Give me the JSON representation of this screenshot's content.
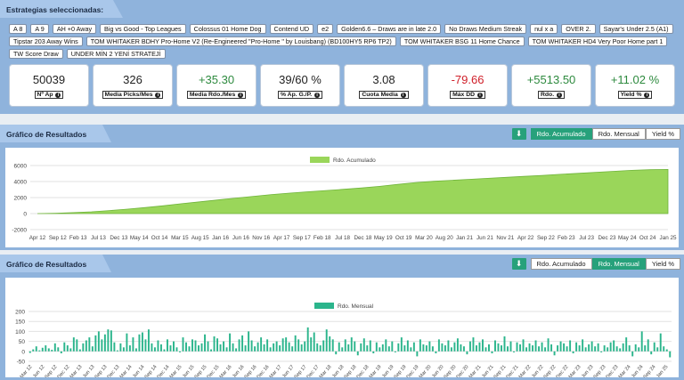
{
  "strategies": {
    "title": "Estrategias seleccionadas:",
    "chips": [
      "A 8",
      "A 9",
      "AH +0 Away",
      "Big vs Good - Top Leagues",
      "Colossus 01 Home Dog",
      "Contend UD",
      "e2",
      "Golden6.6 – Draws are in late 2.0",
      "No Draws Medium Streak",
      "nul x a",
      "OVER 2.",
      "Sayar's Under 2.5 (A1)",
      "Tipstar 203 Away Wins",
      "TOM WHITAKER BDHY Pro-Home V2 (Re-Engineered \"Pro-Home \" by Louisbang) (BD100HY5 RP6 TP2)",
      "TOM WHITAKER BSG 11 Home Chance",
      "TOM WHITAKER HD4 Very Poor Home part 1",
      "TW Score Draw",
      "UNDER MİN 2 YENİ STRATEJİ"
    ]
  },
  "stats": [
    {
      "value": "50039",
      "label": "Nº Ap",
      "tone": "neutral"
    },
    {
      "value": "326",
      "label": "Media Picks/Mes",
      "tone": "neutral"
    },
    {
      "value": "+35.30",
      "label": "Media Rdo./Mes",
      "tone": "pos"
    },
    {
      "value": "39/60 %",
      "label": "% Ap. G./P.",
      "tone": "neutral"
    },
    {
      "value": "3.08",
      "label": "Cuota Media",
      "tone": "neutral"
    },
    {
      "value": "-79.66",
      "label": "Máx DD",
      "tone": "neg"
    },
    {
      "value": "+5513.50",
      "label": "Rdo.",
      "tone": "pos"
    },
    {
      "value": "+11.02 %",
      "label": "Yield %",
      "tone": "pos"
    }
  ],
  "info_glyph": "i",
  "download_glyph": "⬇",
  "cumulative_chart": {
    "title": "Gráfico de Resultados",
    "buttons": [
      "Rdo. Acumulado",
      "Rdo. Mensual",
      "Yield %"
    ],
    "active": 0,
    "chart_data": {
      "type": "area",
      "legend": "Rdo. Acumulado",
      "legend_position": "top",
      "color": "#9ad65a",
      "x_ticks": [
        "Apr 12",
        "Sep 12",
        "Feb 13",
        "Jul 13",
        "Dec 13",
        "May 14",
        "Oct 14",
        "Mar 15",
        "Aug 15",
        "Jan 16",
        "Jun 16",
        "Nov 16",
        "Apr 17",
        "Sep 17",
        "Feb 18",
        "Jul 18",
        "Dec 18",
        "May 19",
        "Oct 19",
        "Mar 20",
        "Aug 20",
        "Jan 21",
        "Jun 21",
        "Nov 21",
        "Apr 22",
        "Sep 22",
        "Feb 23",
        "Jul 23",
        "Dec 23",
        "May 24",
        "Oct 24",
        "Jan 25"
      ],
      "y_ticks": [
        6000,
        4000,
        2000,
        0,
        -2000
      ],
      "ylim": [
        -2000,
        6000
      ],
      "values": [
        0,
        40,
        120,
        220,
        380,
        560,
        760,
        980,
        1230,
        1470,
        1700,
        1930,
        2160,
        2380,
        2560,
        2720,
        2880,
        3030,
        3200,
        3400,
        3640,
        3880,
        4030,
        4160,
        4280,
        4400,
        4520,
        4640,
        4760,
        4900,
        5020,
        5160,
        5280,
        5400,
        5480,
        5513.5
      ]
    }
  },
  "monthly_chart": {
    "title": "Gráfico de Resultados",
    "buttons": [
      "Rdo. Acumulado",
      "Rdo. Mensual",
      "Yield %"
    ],
    "active": 1,
    "chart_data": {
      "type": "bar",
      "legend": "Rdo. Mensual",
      "legend_position": "top",
      "color": "#2bb58c",
      "x_ticks": [
        "Mar 12",
        "Jun 12",
        "Sep 12",
        "Dec 12",
        "Mar 13",
        "Jun 13",
        "Sep 13",
        "Dec 13",
        "Mar 14",
        "Jun 14",
        "Sep 14",
        "Dec 14",
        "Mar 15",
        "Jun 15",
        "Sep 15",
        "Dec 15",
        "Mar 16",
        "Jun 16",
        "Sep 16",
        "Dec 16",
        "Mar 17",
        "Jun 17",
        "Sep 17",
        "Dec 17",
        "Mar 18",
        "Jun 18",
        "Sep 18",
        "Dec 18",
        "Mar 19",
        "Jun 19",
        "Sep 19",
        "Dec 19",
        "Mar 20",
        "Jun 20",
        "Sep 20",
        "Dec 20",
        "Mar 21",
        "Jun 21",
        "Sep 21",
        "Dec 21",
        "Mar 22",
        "Jun 22",
        "Sep 22",
        "Dec 22",
        "Mar 23",
        "Jun 23",
        "Sep 23",
        "Dec 23",
        "Mar 24",
        "Jun 24",
        "Sep 24",
        "Jan 25"
      ],
      "y_ticks": [
        200,
        150,
        100,
        50,
        0,
        -50
      ],
      "ylim": [
        -50,
        200
      ],
      "values": [
        -8,
        10,
        25,
        5,
        18,
        30,
        15,
        8,
        40,
        20,
        -10,
        45,
        30,
        15,
        70,
        60,
        10,
        40,
        55,
        70,
        25,
        80,
        100,
        60,
        85,
        110,
        105,
        45,
        5,
        40,
        20,
        90,
        30,
        70,
        15,
        85,
        95,
        60,
        110,
        40,
        20,
        55,
        35,
        10,
        60,
        30,
        50,
        20,
        -5,
        70,
        45,
        25,
        60,
        55,
        30,
        40,
        85,
        50,
        10,
        75,
        65,
        35,
        50,
        20,
        90,
        40,
        15,
        60,
        80,
        30,
        100,
        55,
        25,
        45,
        70,
        35,
        60,
        20,
        40,
        50,
        30,
        65,
        70,
        45,
        25,
        80,
        60,
        35,
        50,
        120,
        70,
        95,
        40,
        30,
        55,
        110,
        75,
        60,
        -15,
        45,
        20,
        60,
        35,
        70,
        50,
        -20,
        40,
        65,
        30,
        55,
        -10,
        45,
        20,
        35,
        60,
        25,
        50,
        -5,
        40,
        70,
        30,
        55,
        20,
        45,
        -25,
        60,
        35,
        30,
        50,
        25,
        -10,
        60,
        40,
        30,
        55,
        20,
        45,
        65,
        35,
        25,
        -15,
        50,
        70,
        30,
        45,
        60,
        20,
        35,
        -10,
        55,
        40,
        30,
        75,
        25,
        50,
        -5,
        45,
        35,
        60,
        20,
        40,
        30,
        55,
        25,
        45,
        20,
        65,
        35,
        -20,
        30,
        50,
        40,
        25,
        55,
        -10,
        45,
        30,
        60,
        20,
        35,
        50,
        25,
        40,
        -5,
        30,
        20,
        45,
        55,
        25,
        15,
        40,
        70,
        30,
        -25,
        35,
        20,
        100,
        30,
        60,
        -15,
        45,
        20,
        90,
        25,
        10,
        -30
      ]
    }
  }
}
